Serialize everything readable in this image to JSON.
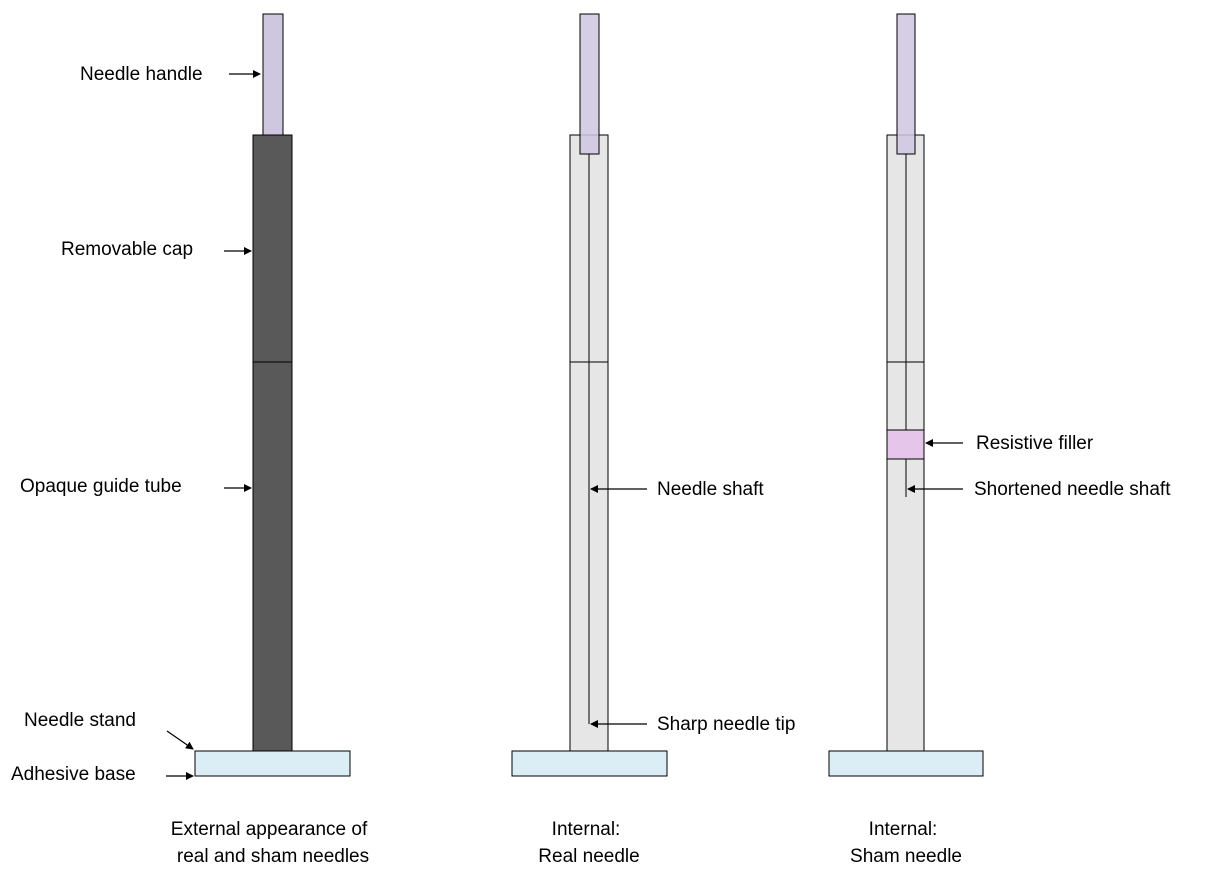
{
  "colors": {
    "handle": "#cfc6df",
    "opaque_tube": "#595959",
    "transparent_tube": "#e6e6e6",
    "base": "#dbeef5",
    "filler": "#e5c5e9",
    "outline": "#000000"
  },
  "labels": {
    "needle_handle": "Needle handle",
    "removable_cap": "Removable cap",
    "opaque_guide_tube": "Opaque guide tube",
    "needle_stand": "Needle stand",
    "adhesive_base": "Adhesive base",
    "needle_shaft": "Needle shaft",
    "sharp_needle_tip": "Sharp needle tip",
    "resistive_filler": "Resistive filler",
    "shortened_needle_shaft": "Shortened needle shaft"
  },
  "captions": {
    "external": [
      "External appearance of",
      "real and sham needles"
    ],
    "real": [
      "Internal:",
      "Real needle"
    ],
    "sham": [
      "Internal:",
      "Sham needle"
    ]
  }
}
